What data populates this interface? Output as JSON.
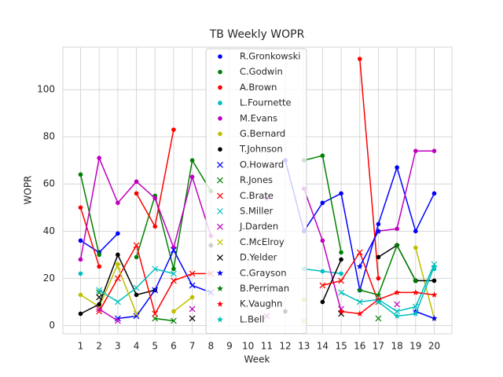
{
  "chart_data": {
    "type": "line",
    "title": "TB Weekly WOPR",
    "xlabel": "Week",
    "ylabel": "WOPR",
    "x": [
      1,
      2,
      3,
      4,
      5,
      6,
      7,
      8,
      9,
      10,
      11,
      12,
      13,
      14,
      15,
      16,
      17,
      18,
      19,
      20
    ],
    "xlim": [
      0.05,
      20.95
    ],
    "xticks": [
      1,
      2,
      3,
      4,
      5,
      6,
      7,
      8,
      9,
      10,
      11,
      12,
      13,
      14,
      15,
      16,
      17,
      18,
      19,
      20
    ],
    "ylim": [
      -3.5,
      118
    ],
    "yticks": [
      0,
      20,
      40,
      60,
      80,
      100
    ],
    "grid": true,
    "legend": "upper center",
    "series": [
      {
        "name": "R.Gronkowski",
        "color": "#0000ff",
        "marker": "o",
        "values": [
          36,
          31,
          39,
          null,
          null,
          null,
          null,
          null,
          null,
          null,
          null,
          70,
          40,
          52,
          56,
          15,
          43,
          67,
          40,
          56
        ]
      },
      {
        "name": "C.Godwin",
        "color": "#008000",
        "marker": "o",
        "values": [
          64,
          30,
          null,
          29,
          55,
          24,
          70,
          57,
          null,
          null,
          null,
          null,
          70,
          72,
          31,
          null,
          null,
          null,
          null,
          null
        ]
      },
      {
        "name": "A.Brown",
        "color": "#ff0000",
        "marker": "o",
        "values": [
          50,
          25,
          null,
          56,
          42,
          83,
          null,
          null,
          null,
          null,
          null,
          null,
          null,
          null,
          null,
          113,
          20,
          null,
          null,
          null
        ]
      },
      {
        "name": "L.Fournette",
        "color": "#00bfbf",
        "marker": "o",
        "values": [
          22,
          null,
          null,
          null,
          null,
          null,
          null,
          null,
          null,
          null,
          null,
          null,
          24,
          23,
          22,
          null,
          null,
          null,
          null,
          24
        ]
      },
      {
        "name": "M.Evans",
        "color": "#bf00bf",
        "marker": "o",
        "values": [
          28,
          71,
          52,
          61,
          54,
          33,
          63,
          38,
          null,
          null,
          54,
          null,
          58,
          36,
          6,
          null,
          40,
          41,
          74,
          74
        ]
      },
      {
        "name": "G.Bernard",
        "color": "#bfbf00",
        "marker": "o",
        "values": [
          13,
          8,
          26,
          null,
          null,
          6,
          12,
          null,
          null,
          null,
          null,
          null,
          11,
          null,
          null,
          null,
          null,
          null,
          33,
          3
        ]
      },
      {
        "name": "T.Johnson",
        "color": "#000000",
        "marker": "o",
        "values": [
          5,
          9,
          30,
          13,
          15,
          null,
          null,
          34,
          null,
          null,
          null,
          6,
          null,
          10,
          28,
          null,
          29,
          34,
          19,
          19
        ]
      },
      {
        "name": "O.Howard",
        "color": "#0000ff",
        "marker": "x",
        "values": [
          null,
          null,
          3,
          4,
          15,
          32,
          17,
          14,
          null,
          null,
          null,
          null,
          null,
          null,
          null,
          null,
          null,
          null,
          null,
          null
        ]
      },
      {
        "name": "R.Jones",
        "color": "#008000",
        "marker": "x",
        "values": [
          null,
          14,
          null,
          null,
          3,
          2,
          null,
          null,
          null,
          null,
          null,
          null,
          null,
          null,
          null,
          null,
          3,
          null,
          null,
          null
        ]
      },
      {
        "name": "C.Brate",
        "color": "#ff0000",
        "marker": "x",
        "values": [
          null,
          6,
          20,
          34,
          5,
          19,
          22,
          22,
          null,
          null,
          null,
          null,
          null,
          17,
          19,
          31,
          10,
          null,
          null,
          null
        ]
      },
      {
        "name": "S.Miller",
        "color": "#00bfbf",
        "marker": "x",
        "values": [
          null,
          15,
          10,
          16,
          24,
          22,
          null,
          null,
          null,
          null,
          null,
          null,
          null,
          null,
          14,
          10,
          11,
          6,
          8,
          26
        ]
      },
      {
        "name": "J.Darden",
        "color": "#bf00bf",
        "marker": "x",
        "values": [
          null,
          7,
          2,
          null,
          null,
          null,
          7,
          null,
          null,
          null,
          4,
          null,
          null,
          null,
          7,
          null,
          null,
          9,
          null,
          null
        ]
      },
      {
        "name": "C.McElroy",
        "color": "#bfbf00",
        "marker": "x",
        "values": [
          null,
          null,
          25,
          5,
          null,
          null,
          null,
          null,
          null,
          null,
          null,
          null,
          2,
          null,
          null,
          null,
          null,
          null,
          null,
          null
        ]
      },
      {
        "name": "D.Yelder",
        "color": "#000000",
        "marker": "x",
        "values": [
          null,
          12,
          null,
          null,
          null,
          null,
          3,
          null,
          null,
          null,
          null,
          null,
          null,
          null,
          5,
          null,
          null,
          null,
          null,
          null
        ]
      },
      {
        "name": "C.Grayson",
        "color": "#0000ff",
        "marker": "*",
        "values": [
          null,
          null,
          null,
          null,
          null,
          null,
          null,
          null,
          null,
          null,
          null,
          null,
          null,
          null,
          null,
          25,
          40,
          null,
          6,
          3
        ]
      },
      {
        "name": "B.Perriman",
        "color": "#008000",
        "marker": "*",
        "values": [
          null,
          null,
          null,
          null,
          null,
          null,
          null,
          null,
          null,
          null,
          null,
          null,
          null,
          null,
          null,
          15,
          13,
          34,
          19,
          null
        ]
      },
      {
        "name": "K.Vaughn",
        "color": "#ff0000",
        "marker": "*",
        "values": [
          null,
          null,
          null,
          null,
          null,
          null,
          null,
          null,
          null,
          null,
          null,
          null,
          null,
          null,
          6,
          5,
          11,
          14,
          14,
          13
        ]
      },
      {
        "name": "L.Bell",
        "color": "#00bfbf",
        "marker": "*",
        "values": [
          null,
          null,
          null,
          null,
          null,
          null,
          null,
          null,
          null,
          null,
          null,
          null,
          null,
          null,
          null,
          null,
          10,
          4,
          5,
          25
        ]
      }
    ]
  }
}
